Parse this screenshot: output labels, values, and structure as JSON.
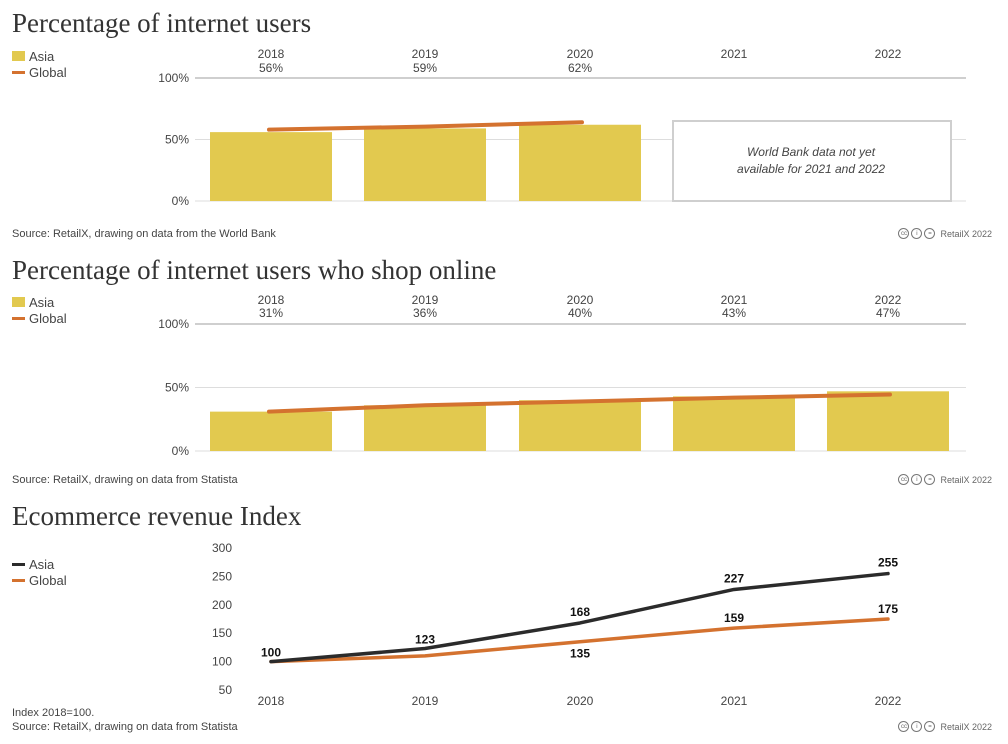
{
  "colors": {
    "asia_bar": "#e2c94f",
    "global": "#d4722f",
    "asia_line": "#2b2b2b",
    "grid": "#dddddd"
  },
  "credit_text": "RetailX 2022",
  "chart_data": [
    {
      "type": "bar",
      "title": "Percentage of internet users",
      "legend": [
        "Asia",
        "Global"
      ],
      "categories": [
        "2018",
        "2019",
        "2020",
        "2021",
        "2022"
      ],
      "value_labels": [
        "56%",
        "59%",
        "62%",
        "",
        ""
      ],
      "yticks": [
        "100%",
        "50%",
        "0%"
      ],
      "ylim": [
        0,
        100
      ],
      "series": [
        {
          "name": "Asia",
          "type": "bar",
          "values": [
            56,
            59,
            62,
            null,
            null
          ]
        },
        {
          "name": "Global",
          "type": "line",
          "values": [
            58,
            60.5,
            64,
            null,
            null
          ]
        }
      ],
      "annotation": [
        "World Bank data not yet",
        "available for 2021 and 2022"
      ],
      "source": "Source: RetailX, drawing on data from the World Bank"
    },
    {
      "type": "bar",
      "title": "Percentage of internet users who shop online",
      "legend": [
        "Asia",
        "Global"
      ],
      "categories": [
        "2018",
        "2019",
        "2020",
        "2021",
        "2022"
      ],
      "value_labels": [
        "31%",
        "36%",
        "40%",
        "43%",
        "47%"
      ],
      "yticks": [
        "100%",
        "50%",
        "0%"
      ],
      "ylim": [
        0,
        100
      ],
      "series": [
        {
          "name": "Asia",
          "type": "bar",
          "values": [
            31,
            36,
            40,
            43,
            47
          ]
        },
        {
          "name": "Global",
          "type": "line",
          "values": [
            31,
            36,
            39,
            42,
            44.5
          ]
        }
      ],
      "source": "Source: RetailX, drawing on data from Statista"
    },
    {
      "type": "line",
      "title": "Ecommerce revenue Index",
      "legend": [
        "Asia",
        "Global"
      ],
      "categories": [
        "2018",
        "2019",
        "2020",
        "2021",
        "2022"
      ],
      "yticks": [
        "300",
        "250",
        "200",
        "150",
        "100",
        "50"
      ],
      "ylim": [
        50,
        300
      ],
      "series": [
        {
          "name": "Asia",
          "values": [
            100,
            123,
            168,
            227,
            255
          ],
          "labels": [
            "100",
            "123",
            "168",
            "227",
            "255"
          ]
        },
        {
          "name": "Global",
          "values": [
            100,
            110,
            135,
            159,
            175
          ],
          "labels": [
            "",
            "",
            "135",
            "159",
            "175"
          ]
        }
      ],
      "note": "Index 2018=100.",
      "source": "Source: RetailX, drawing on data from Statista"
    }
  ]
}
